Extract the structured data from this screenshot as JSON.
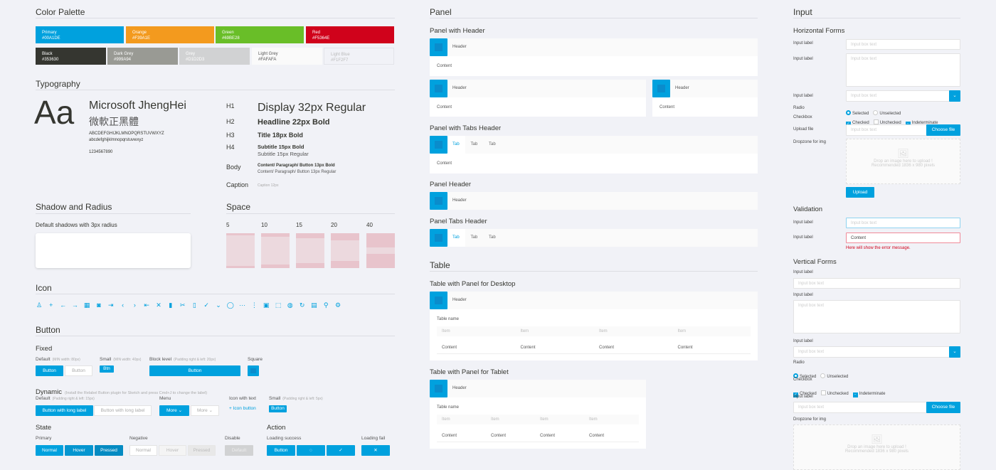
{
  "colors": {
    "primary": "#00A1DE",
    "orange": "#F39A1E",
    "green": "#69BE28",
    "red": "#F5364E",
    "black": "#353630",
    "dark_grey": "#999A94",
    "grey": "#D1D2D3",
    "light_grey": "#FAFAFA",
    "light_blue": "#F1F2F7",
    "error": "#D0021B"
  },
  "palette": {
    "title": "Color Palette",
    "row1": [
      {
        "name": "Primary",
        "hex": "#00A1DE"
      },
      {
        "name": "Orange",
        "hex": "#F39A1E"
      },
      {
        "name": "Green",
        "hex": "#69BE28"
      },
      {
        "name": "Red",
        "hex": "#F5364E"
      }
    ],
    "row2": [
      {
        "name": "Black",
        "hex": "#353630"
      },
      {
        "name": "Dark Grey",
        "hex": "#999A94"
      },
      {
        "name": "Grey",
        "hex": "#D1D2D3"
      },
      {
        "name": "Light Grey",
        "hex": "#FAFAFA"
      },
      {
        "name": "Light Blue",
        "hex": "#F1F2F7"
      }
    ]
  },
  "typography": {
    "title": "Typography",
    "sample": "Aa",
    "font_name": "Microsoft JhengHei",
    "font_name_cjk": "微軟正黑體",
    "upper": "ABCDEFGHIJKLMNOPQRSTUVWXYZ",
    "lower": "abcdefghijklmnopqrstuvwxyz",
    "digits": "1234567890",
    "h1": {
      "label": "H1",
      "text": "Display 32px Regular"
    },
    "h2": {
      "label": "H2",
      "text": "Headline 22px Bold"
    },
    "h3": {
      "label": "H3",
      "text": "Title 18px Bold"
    },
    "h4": {
      "label": "H4",
      "text": "Subtitle 15px Bold",
      "text2": "Subtitle 15px Regular"
    },
    "body": {
      "label": "Body",
      "text": "Content/ Paragraph/ Button 13px Bold",
      "text2": "Content/ Paragraph/ Button 13px Regular"
    },
    "caption": {
      "label": "Caption",
      "text": "Caption 12px"
    }
  },
  "shadow": {
    "title": "Shadow and Radius",
    "label": "Default shadows with 3px radius"
  },
  "space": {
    "title": "Space",
    "values": [
      "5",
      "10",
      "15",
      "20",
      "40"
    ]
  },
  "icon": {
    "title": "Icon",
    "items": [
      "user-icon",
      "plus-icon",
      "arrow-left-icon",
      "arrow-right-icon",
      "calendar-icon",
      "camera-icon",
      "last-page-icon",
      "chevron-left-icon",
      "chevron-right-icon",
      "first-page-icon",
      "close-icon",
      "trash-icon",
      "tools-icon",
      "remote-icon",
      "check-icon",
      "chevron-down-icon",
      "spinner-icon",
      "more-horizontal-icon",
      "more-vertical-icon",
      "save-icon",
      "selection-icon",
      "globe-icon",
      "refresh-icon",
      "layout-icon",
      "search-icon",
      "settings-icon"
    ]
  },
  "button": {
    "title": "Button",
    "fixed": "Fixed",
    "default_label": "Default",
    "default_hint": "(MIN width: 80px)",
    "small_label": "Small",
    "small_hint": "(MIN width: 40px)",
    "block_label": "Block level",
    "block_hint": "(Padding right & left: 20px)",
    "square_label": "Square",
    "btn": "Button",
    "btn_small": "Btn",
    "dynamic": "Dynamic",
    "dynamic_hint": "(Install the Relabel Button plugin for Sketch and press Cmd+J to change the label)",
    "dyn_default_hint": "(Padding right & left: 15px)",
    "menu_label": "Menu",
    "icon_text_label": "Icon with text",
    "dyn_small_hint": "(Padding right & left: 5px)",
    "long": "Button with long label",
    "more": "More",
    "icon_button": "Icon button",
    "state": "State",
    "primary": "Primary",
    "negative": "Negative",
    "disable": "Disable",
    "normal": "Normal",
    "hover": "Hover",
    "pressed": "Pressed",
    "default": "Default",
    "action": "Action",
    "loading_success": "Loading success",
    "loading_fail": "Loading fail"
  },
  "panel": {
    "title": "Panel",
    "with_header": "Panel with Header",
    "with_tabs": "Panel with Tabs Header",
    "panel_header": "Panel Header",
    "panel_tabs_header": "Panel Tabs Header",
    "header": "Header",
    "content": "Content",
    "tabs": [
      "Tab",
      "Tab",
      "Tab"
    ]
  },
  "table": {
    "title": "Table",
    "desktop": "Table with Panel for Desktop",
    "tablet": "Table with Panel for Tablet",
    "header": "Header",
    "name": "Table name",
    "columns": [
      "Item",
      "Item",
      "Item",
      "Item"
    ],
    "row": [
      "Content",
      "Content",
      "Content",
      "Content"
    ]
  },
  "input": {
    "title": "Input",
    "horizontal": "Horizontal Forms",
    "label": "Input label",
    "placeholder": "Input box text",
    "radio": "Radio",
    "selected": "Selected",
    "unselected": "Unselected",
    "checkbox": "Checkbox",
    "checked": "Checked",
    "unchecked": "Unchecked",
    "indeterminate": "Indeterminate",
    "upload_file": "Upload file",
    "choose_file": "Choose file",
    "dropzone": "Dropzone for img",
    "drop_text": "Drop an image here to upload !",
    "drop_hint": "Recommended 1836 x 980 pixels",
    "upload": "Upload",
    "validation": "Validation",
    "error_value": "Content",
    "error_message": "Here will show the error message.",
    "vertical": "Vertical Forms"
  }
}
